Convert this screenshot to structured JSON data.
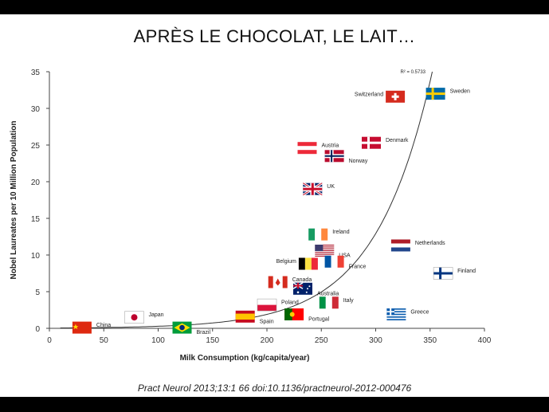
{
  "title": "APRÈS LE CHOCOLAT, LE LAIT…",
  "citation": "Pract Neurol 2013;13:1 66 doi:10.1136/practneurol-2012-000476",
  "chart_data": {
    "type": "scatter",
    "xlabel": "Milk Consumption (kg/capita/year)",
    "ylabel": "Nobel Laureates per 10 Million Population",
    "xlim": [
      0,
      400
    ],
    "ylim": [
      0,
      35
    ],
    "xticks": [
      0,
      50,
      100,
      150,
      200,
      250,
      300,
      350,
      400
    ],
    "yticks": [
      0,
      5,
      10,
      15,
      20,
      25,
      30,
      35
    ],
    "grid": false,
    "annotation": "R² = 0.5733",
    "points": [
      {
        "label": "China",
        "x": 30,
        "y": 0.1,
        "flag": "china"
      },
      {
        "label": "Japan",
        "x": 78,
        "y": 1.5,
        "flag": "japan"
      },
      {
        "label": "Brazil",
        "x": 122,
        "y": 0.1,
        "flag": "brazil"
      },
      {
        "label": "Spain",
        "x": 180,
        "y": 1.6,
        "flag": "spain"
      },
      {
        "label": "Poland",
        "x": 200,
        "y": 3.2,
        "flag": "poland"
      },
      {
        "label": "Portugal",
        "x": 225,
        "y": 1.9,
        "flag": "portugal"
      },
      {
        "label": "Canada",
        "x": 210,
        "y": 6.3,
        "flag": "canada"
      },
      {
        "label": "Australia",
        "x": 233,
        "y": 5.4,
        "flag": "australia"
      },
      {
        "label": "Italy",
        "x": 257,
        "y": 3.5,
        "flag": "italy"
      },
      {
        "label": "Belgium",
        "x": 238,
        "y": 8.8,
        "flag": "belgium"
      },
      {
        "label": "USA",
        "x": 253,
        "y": 10.6,
        "flag": "usa"
      },
      {
        "label": "France",
        "x": 262,
        "y": 9.1,
        "flag": "france"
      },
      {
        "label": "Ireland",
        "x": 247,
        "y": 12.8,
        "flag": "ireland"
      },
      {
        "label": "UK",
        "x": 242,
        "y": 19.0,
        "flag": "uk"
      },
      {
        "label": "Austria",
        "x": 237,
        "y": 24.6,
        "flag": "austria"
      },
      {
        "label": "Norway",
        "x": 262,
        "y": 23.5,
        "flag": "norway"
      },
      {
        "label": "Denmark",
        "x": 296,
        "y": 25.3,
        "flag": "denmark"
      },
      {
        "label": "Switzerland",
        "x": 318,
        "y": 31.6,
        "flag": "switzerland"
      },
      {
        "label": "Sweden",
        "x": 355,
        "y": 32.0,
        "flag": "sweden"
      },
      {
        "label": "Netherlands",
        "x": 323,
        "y": 11.3,
        "flag": "netherlands"
      },
      {
        "label": "Finland",
        "x": 362,
        "y": 7.5,
        "flag": "finland"
      },
      {
        "label": "Greece",
        "x": 319,
        "y": 1.9,
        "flag": "greece"
      }
    ],
    "trendline": {
      "type": "exponential",
      "from": [
        10,
        0.05
      ],
      "to": [
        352,
        35
      ]
    }
  }
}
